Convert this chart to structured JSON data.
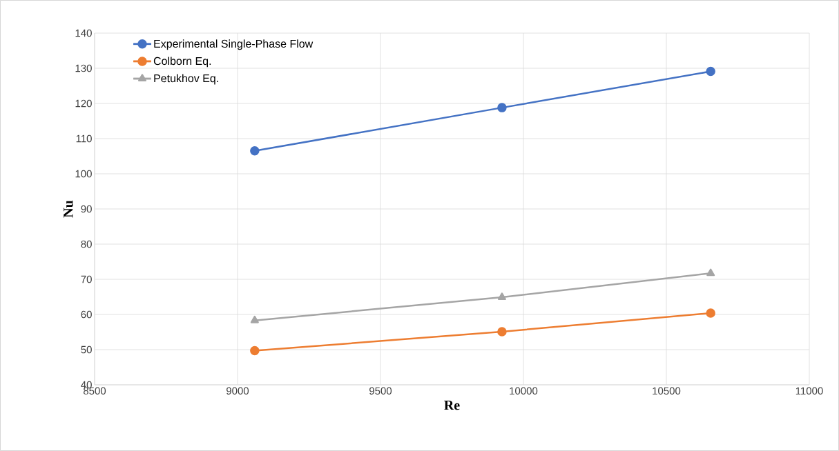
{
  "chart_data": {
    "type": "line",
    "xlabel": "Re",
    "ylabel": "Nu",
    "xlim": [
      8500,
      11000
    ],
    "xticks": [
      8500,
      9000,
      9500,
      10000,
      10500,
      11000
    ],
    "ylim": [
      40,
      140
    ],
    "yticks": [
      40,
      50,
      60,
      70,
      80,
      90,
      100,
      110,
      120,
      130,
      140
    ],
    "grid": true,
    "legend": "top left",
    "line_style": "solid",
    "series": [
      {
        "name": "Experimental Single-Phase Flow",
        "color": "#4472c4",
        "marker": "circle",
        "x": [
          9060,
          9925,
          10655
        ],
        "values": [
          106.5,
          118.8,
          129.1
        ]
      },
      {
        "name": "Colborn Eq.",
        "color": "#ed7d31",
        "marker": "circle",
        "x": [
          9060,
          9925,
          10655
        ],
        "values": [
          49.7,
          55.1,
          60.4
        ]
      },
      {
        "name": "Petukhov Eq.",
        "color": "#a5a5a5",
        "marker": "triangle",
        "x": [
          9060,
          9925,
          10655
        ],
        "values": [
          58.3,
          64.9,
          71.7
        ]
      }
    ]
  }
}
